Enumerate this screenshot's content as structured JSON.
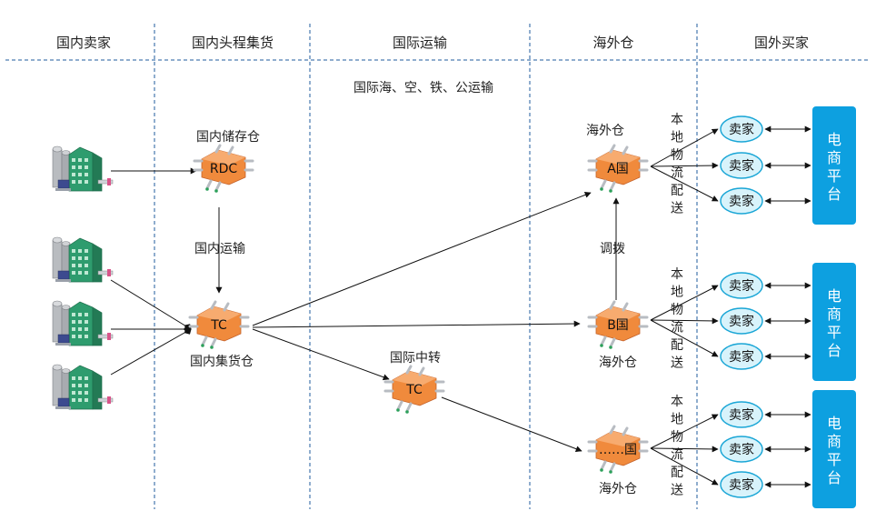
{
  "columns": [
    "国内卖家",
    "国内头程集货",
    "国际运输",
    "海外仓",
    "国外买家"
  ],
  "top_note": "国际海、空、铁、公运输",
  "rdc": {
    "label": "RDC",
    "caption": "国内储存仓"
  },
  "domestic_transport": "国内运输",
  "tc_main": {
    "label": "TC",
    "caption": "国内集货仓"
  },
  "tc_transfer": {
    "label": "TC",
    "caption": "国际中转"
  },
  "warehouses": [
    {
      "label": "A国",
      "caption": "海外仓"
    },
    {
      "label": "B国",
      "caption": "海外仓"
    },
    {
      "label": "……国",
      "caption": "海外仓"
    }
  ],
  "transfer_label": "调拨",
  "local_delivery": "本地物流配送",
  "seller_label": "卖家",
  "platform_label": "电商平台",
  "colors": {
    "platform": "#0da0e0",
    "seller_fill": "#d8f3fb",
    "seller_stroke": "#1aa6d6",
    "node_orange": "#f08a3c",
    "factory_green": "#2e9c6e"
  }
}
